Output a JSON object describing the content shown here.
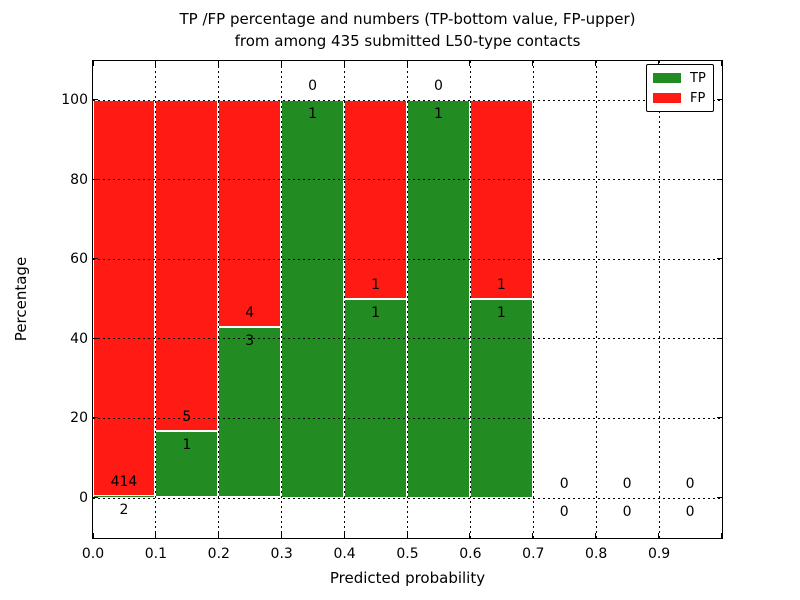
{
  "title": {
    "line1": "TP /FP percentage and numbers (TP-bottom value, FP-upper)",
    "line2": "from among 435 submitted L50-type contacts"
  },
  "axes": {
    "x_label": "Predicted probability",
    "y_label": "Percentage"
  },
  "legend": {
    "items": [
      {
        "label": "TP",
        "color": "#228b22"
      },
      {
        "label": "FP",
        "color": "#ff1a14"
      }
    ]
  },
  "colors": {
    "tp": "#228b22",
    "fp": "#ff1a14",
    "grid": "#000000",
    "spine": "#000000",
    "background": "#ffffff"
  },
  "chart_data": {
    "type": "bar",
    "stacked": true,
    "title": "TP /FP percentage and numbers (TP-bottom value, FP-upper)\nfrom among 435 submitted L50-type contacts",
    "xlabel": "Predicted probability",
    "ylabel": "Percentage",
    "xlim": [
      0.0,
      1.0
    ],
    "ylim": [
      -10,
      109.5
    ],
    "x_tick_values": [
      0.0,
      0.1,
      0.2,
      0.3,
      0.4,
      0.5,
      0.6,
      0.7,
      0.8,
      0.9
    ],
    "x_tick_labels": [
      "0.0",
      "0.1",
      "0.2",
      "0.3",
      "0.4",
      "0.5",
      "0.6",
      "0.7",
      "0.8",
      "0.9"
    ],
    "y_tick_values": [
      0,
      20,
      40,
      60,
      80,
      100
    ],
    "y_tick_labels": [
      "0",
      "20",
      "40",
      "60",
      "80",
      "100"
    ],
    "grid": "dotted",
    "legend_position": "upper right",
    "total_contacts": 435,
    "bin_width": 0.1,
    "series_note": "green TP percentage stacked below red FP percentage; labels show counts, TP below boundary, FP above",
    "bins": [
      {
        "x_start": 0.0,
        "tp": 2,
        "fp": 414
      },
      {
        "x_start": 0.1,
        "tp": 1,
        "fp": 5
      },
      {
        "x_start": 0.2,
        "tp": 3,
        "fp": 4
      },
      {
        "x_start": 0.3,
        "tp": 1,
        "fp": 0
      },
      {
        "x_start": 0.4,
        "tp": 1,
        "fp": 1
      },
      {
        "x_start": 0.5,
        "tp": 1,
        "fp": 0
      },
      {
        "x_start": 0.6,
        "tp": 1,
        "fp": 1
      },
      {
        "x_start": 0.7,
        "tp": 0,
        "fp": 0
      },
      {
        "x_start": 0.8,
        "tp": 0,
        "fp": 0
      },
      {
        "x_start": 0.9,
        "tp": 0,
        "fp": 0
      }
    ]
  }
}
